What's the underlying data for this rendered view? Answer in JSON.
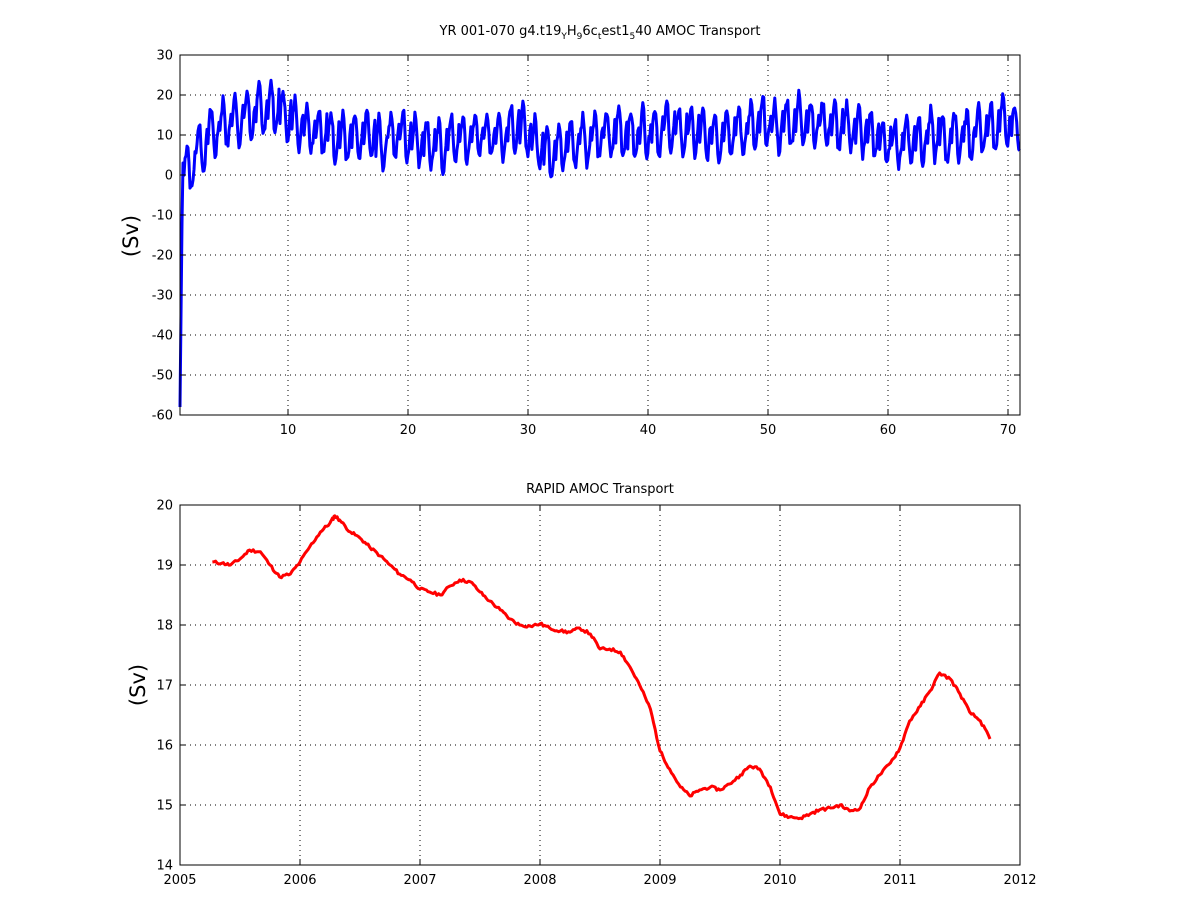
{
  "chart_data": [
    {
      "type": "line",
      "title": {
        "prefix": "YR 001-070 g4.t19",
        "sub1": "Y",
        "mid1": "H",
        "sub2": "9",
        "mid2": "6c",
        "sub3": "t",
        "mid3": "est1",
        "sub4": "5",
        "suffix": "40 AMOC Transport"
      },
      "xlabel": "",
      "ylabel": "(Sv)",
      "xlim": [
        1,
        71
      ],
      "ylim": [
        -60,
        30
      ],
      "xticks": [
        10,
        20,
        30,
        40,
        50,
        60,
        70
      ],
      "yticks": [
        -60,
        -50,
        -40,
        -30,
        -20,
        -10,
        0,
        10,
        20,
        30
      ],
      "grid": true,
      "color": "#0000ff",
      "series": [
        {
          "x_start": 1.0,
          "x_step": 0.0833,
          "seasonal_cycle": [
            8,
            12,
            14,
            16,
            15,
            11,
            6,
            4,
            5,
            7,
            10,
            13
          ],
          "annual_mean_offset": [
            -8,
            -3,
            1,
            3,
            4,
            5,
            6,
            7,
            5,
            3,
            2,
            1,
            0,
            -1,
            -1,
            0,
            -2,
            0,
            0,
            -1,
            -2,
            -3,
            -1,
            -1,
            0,
            0,
            0,
            2,
            1,
            -2,
            -4,
            -3,
            -2,
            -1,
            0,
            0,
            1,
            0,
            1,
            1,
            2,
            1,
            1,
            0,
            0,
            1,
            1,
            2,
            3,
            2,
            3,
            4,
            3,
            3,
            2,
            2,
            1,
            0,
            -2,
            -2,
            -1,
            -1,
            0,
            -1,
            0,
            0,
            1,
            2,
            3,
            2
          ],
          "initial_values": [
            -58,
            -35,
            -12,
            3
          ]
        }
      ]
    },
    {
      "type": "line",
      "title": "RAPID AMOC Transport",
      "xlabel": "",
      "ylabel": "(Sv)",
      "xlim": [
        2005,
        2012
      ],
      "ylim": [
        14,
        20
      ],
      "xticks": [
        2005,
        2006,
        2007,
        2008,
        2009,
        2010,
        2011,
        2012
      ],
      "yticks": [
        14,
        15,
        16,
        17,
        18,
        19,
        20
      ],
      "grid": true,
      "color": "#ff0000",
      "series": [
        {
          "x": [
            2005.27,
            2005.35,
            2005.42,
            2005.5,
            2005.58,
            2005.67,
            2005.75,
            2005.83,
            2005.92,
            2006.0,
            2006.08,
            2006.17,
            2006.25,
            2006.29,
            2006.33,
            2006.42,
            2006.5,
            2006.58,
            2006.67,
            2006.75,
            2006.83,
            2006.92,
            2007.0,
            2007.08,
            2007.17,
            2007.25,
            2007.33,
            2007.42,
            2007.5,
            2007.58,
            2007.67,
            2007.75,
            2007.83,
            2007.92,
            2008.0,
            2008.08,
            2008.17,
            2008.25,
            2008.33,
            2008.42,
            2008.5,
            2008.58,
            2008.67,
            2008.75,
            2008.83,
            2008.92,
            2009.0,
            2009.08,
            2009.17,
            2009.25,
            2009.33,
            2009.42,
            2009.5,
            2009.58,
            2009.67,
            2009.75,
            2009.83,
            2009.92,
            2010.0,
            2010.08,
            2010.17,
            2010.25,
            2010.33,
            2010.42,
            2010.5,
            2010.58,
            2010.67,
            2010.75,
            2010.83,
            2010.92,
            2011.0,
            2011.08,
            2011.17,
            2011.25,
            2011.33,
            2011.42,
            2011.5,
            2011.58,
            2011.67,
            2011.75
          ],
          "y": [
            19.05,
            19.03,
            19.0,
            19.1,
            19.25,
            19.22,
            19.0,
            18.8,
            18.85,
            19.05,
            19.3,
            19.55,
            19.7,
            19.82,
            19.75,
            19.55,
            19.45,
            19.3,
            19.15,
            19.0,
            18.85,
            18.75,
            18.6,
            18.55,
            18.5,
            18.65,
            18.75,
            18.72,
            18.55,
            18.4,
            18.25,
            18.1,
            18.0,
            17.98,
            18.02,
            17.95,
            17.9,
            17.88,
            17.95,
            17.85,
            17.6,
            17.6,
            17.55,
            17.3,
            17.0,
            16.6,
            15.9,
            15.6,
            15.3,
            15.15,
            15.25,
            15.3,
            15.25,
            15.35,
            15.5,
            15.65,
            15.6,
            15.3,
            14.85,
            14.8,
            14.78,
            14.85,
            14.92,
            14.95,
            15.0,
            14.9,
            14.95,
            15.3,
            15.5,
            15.7,
            15.95,
            16.4,
            16.65,
            16.9,
            17.2,
            17.1,
            16.85,
            16.55,
            16.4,
            16.1
          ]
        }
      ]
    }
  ]
}
